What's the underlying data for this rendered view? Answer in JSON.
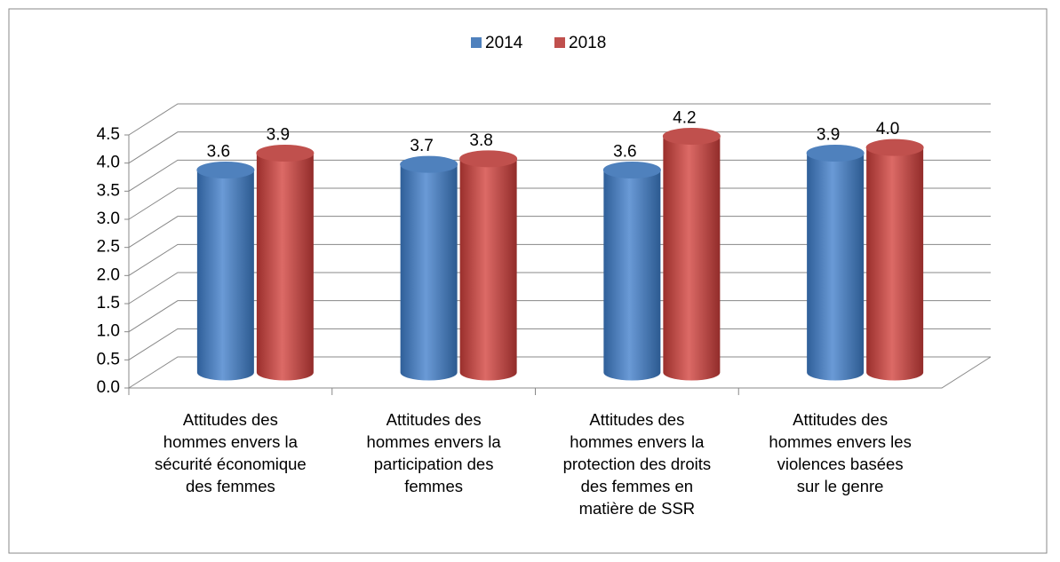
{
  "chart_data": {
    "type": "bar3d",
    "categories": [
      "Attitudes des hommes envers la sécurité économique  des femmes",
      "Attitudes des hommes envers la participation des femmes",
      "Attitudes des hommes envers la protection des droits des femmes en matière de SSR",
      "Attitudes des hommes envers les violences basées sur le genre"
    ],
    "series": [
      {
        "name": "2014",
        "color": "#4f81bd",
        "values": [
          3.6,
          3.7,
          3.6,
          3.9
        ],
        "value_labels": [
          "3.6",
          "3.7",
          "3.6",
          "3.9"
        ]
      },
      {
        "name": "2018",
        "color": "#c0504d",
        "values": [
          3.9,
          3.8,
          4.2,
          4.0
        ],
        "value_labels": [
          "3.9",
          "3.8",
          "4.2",
          "4.0"
        ]
      }
    ],
    "ylim": [
      0,
      4.5
    ],
    "yticks": [
      {
        "value": 0,
        "label": "0.0"
      },
      0.5,
      {
        "value": 1,
        "label": "1.0"
      },
      1.5,
      {
        "value": 2,
        "label": "2.0"
      },
      2.5,
      {
        "value": 3,
        "label": "3.0"
      },
      3.5,
      {
        "value": 4,
        "label": "4.0"
      },
      4.5
    ],
    "grid": true,
    "legend": "top"
  }
}
